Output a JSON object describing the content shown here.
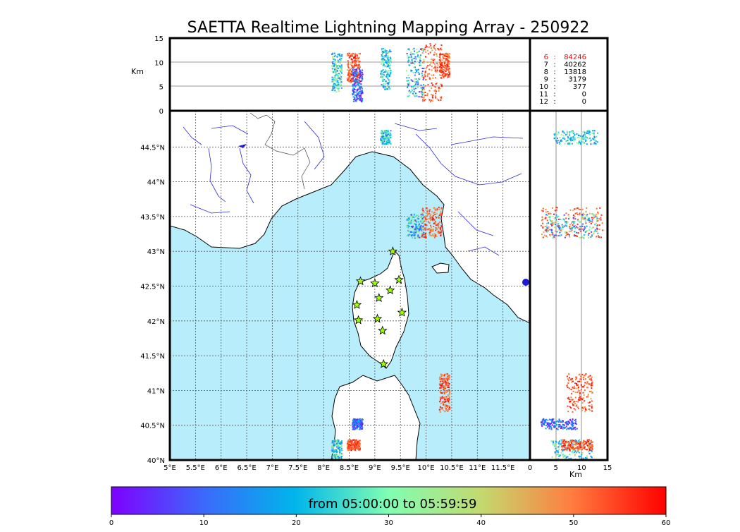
{
  "title": "SAETTA Realtime Lightning Mapping Array - 250922",
  "km_label": "Km",
  "altitude_axis": {
    "unit": "Km",
    "ticks": [
      "0",
      "5",
      "10",
      "15"
    ],
    "range": [
      0,
      15
    ]
  },
  "station_counts": [
    {
      "stations": "6",
      "count": "84246",
      "highlighted": true
    },
    {
      "stations": "7",
      "count": "40262",
      "highlighted": false
    },
    {
      "stations": "8",
      "count": "13818",
      "highlighted": false
    },
    {
      "stations": "9",
      "count": "3179",
      "highlighted": false
    },
    {
      "stations": "10",
      "count": "377",
      "highlighted": false
    },
    {
      "stations": "11",
      "count": "0",
      "highlighted": false
    },
    {
      "stations": "12",
      "count": "0",
      "highlighted": false
    }
  ],
  "map": {
    "lon_ticks": [
      "5°E",
      "5.5°E",
      "6°E",
      "6.5°E",
      "7°E",
      "7.5°E",
      "8°E",
      "8.5°E",
      "9°E",
      "9.5°E",
      "10°E",
      "10.5°E",
      "11°E",
      "11.5°E"
    ],
    "lat_ticks": [
      "40°N",
      "40.5°N",
      "41°N",
      "41.5°N",
      "42°N",
      "42.5°N",
      "43°N",
      "43.5°N",
      "44°N",
      "44.5°N"
    ],
    "lon_range": [
      5,
      12
    ],
    "lat_range": [
      40,
      45
    ],
    "colors": {
      "sea": "#b8eefc",
      "land": "#ffffff",
      "rivers": "#1b1bd8",
      "borders": "#444444",
      "station": "#9dff00"
    }
  },
  "stations": [
    {
      "lon": 9.35,
      "lat": 43.0
    },
    {
      "lon": 8.72,
      "lat": 42.57
    },
    {
      "lon": 9.0,
      "lat": 42.54
    },
    {
      "lon": 9.47,
      "lat": 42.59
    },
    {
      "lon": 9.3,
      "lat": 42.44
    },
    {
      "lon": 9.08,
      "lat": 42.33
    },
    {
      "lon": 8.65,
      "lat": 42.23
    },
    {
      "lon": 9.53,
      "lat": 42.12
    },
    {
      "lon": 8.68,
      "lat": 42.01
    },
    {
      "lon": 9.05,
      "lat": 42.03
    },
    {
      "lon": 9.15,
      "lat": 41.86
    },
    {
      "lon": 9.17,
      "lat": 41.38
    }
  ],
  "lightning_clusters": [
    {
      "lon": [
        9.1,
        9.3
      ],
      "lat": [
        44.55,
        44.75
      ],
      "alt": [
        4.5,
        13
      ],
      "t": [
        10,
        35
      ]
    },
    {
      "lon": [
        9.9,
        10.3
      ],
      "lat": [
        43.2,
        43.65
      ],
      "alt": [
        2,
        14
      ],
      "t": [
        45,
        60
      ]
    },
    {
      "lon": [
        9.6,
        9.95
      ],
      "lat": [
        43.2,
        43.55
      ],
      "alt": [
        3,
        13
      ],
      "t": [
        5,
        40
      ]
    },
    {
      "lon": [
        10.25,
        10.45
      ],
      "lat": [
        40.7,
        41.25
      ],
      "alt": [
        7,
        12
      ],
      "t": [
        45,
        60
      ]
    },
    {
      "lon": [
        8.15,
        8.35
      ],
      "lat": [
        40.02,
        40.3
      ],
      "alt": [
        4,
        12
      ],
      "t": [
        10,
        40
      ]
    },
    {
      "lon": [
        8.45,
        8.7
      ],
      "lat": [
        40.15,
        40.3
      ],
      "alt": [
        6,
        12
      ],
      "t": [
        45,
        60
      ]
    },
    {
      "lon": [
        8.55,
        8.75
      ],
      "lat": [
        40.45,
        40.6
      ],
      "alt": [
        2,
        9
      ],
      "t": [
        0,
        20
      ]
    }
  ],
  "colorbar": {
    "label": "from 05:00:00 to 05:59:59",
    "ticks": [
      "0",
      "10",
      "20",
      "30",
      "40",
      "50",
      "60"
    ],
    "range": [
      0,
      60
    ]
  }
}
